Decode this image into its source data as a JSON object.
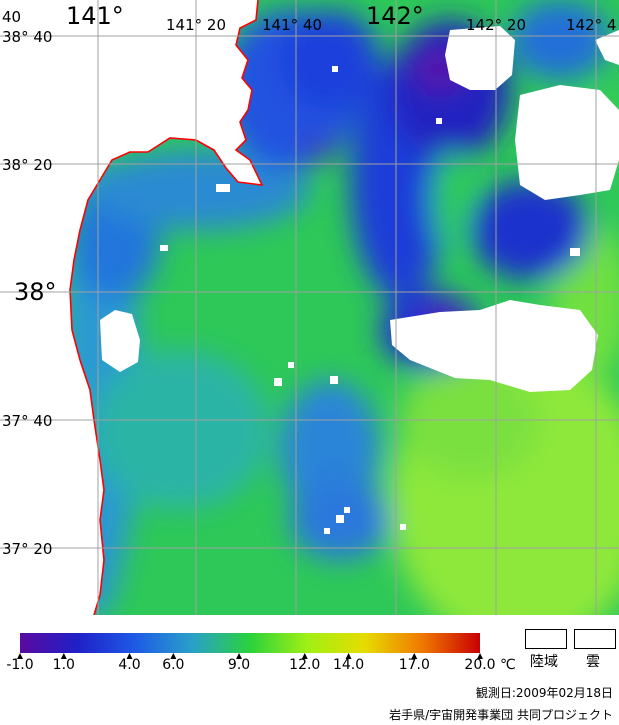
{
  "map": {
    "lon_labels_small": [
      "141° 20",
      "141° 40",
      "142° 20",
      "142° 4"
    ],
    "lon_labels_large": [
      "141°",
      "142°"
    ],
    "lat_labels_small": [
      "38° 40",
      "38° 20",
      "37° 40",
      "37° 20"
    ],
    "lat_labels_large": [
      "38°"
    ],
    "corner_label": "40"
  },
  "colorbar": {
    "ticks": [
      "-1.0",
      "1.0",
      "4.0",
      "6.0",
      "9.0",
      "12.0",
      "14.0",
      "17.0",
      "20.0"
    ],
    "tick_values": [
      -1,
      1,
      4,
      6,
      9,
      12,
      14,
      17,
      20
    ],
    "min": -1,
    "max": 20,
    "unit": "℃",
    "colors": [
      "#5a0aa0",
      "#2020c8",
      "#1e5ae6",
      "#2aa0c8",
      "#2ad23c",
      "#a0f014",
      "#e6dc00",
      "#f07800",
      "#c80000"
    ]
  },
  "keys": {
    "land_label": "陸域",
    "cloud_label": "雲"
  },
  "observation": "観測日:2009年02月18日",
  "credit": "岩手県/宇宙開発事業団 共同プロジェクト",
  "colors": {
    "coast": "#ff0000",
    "grid": "#a0a0a0",
    "land": "#ffffff",
    "cloud": "#ffffff"
  }
}
